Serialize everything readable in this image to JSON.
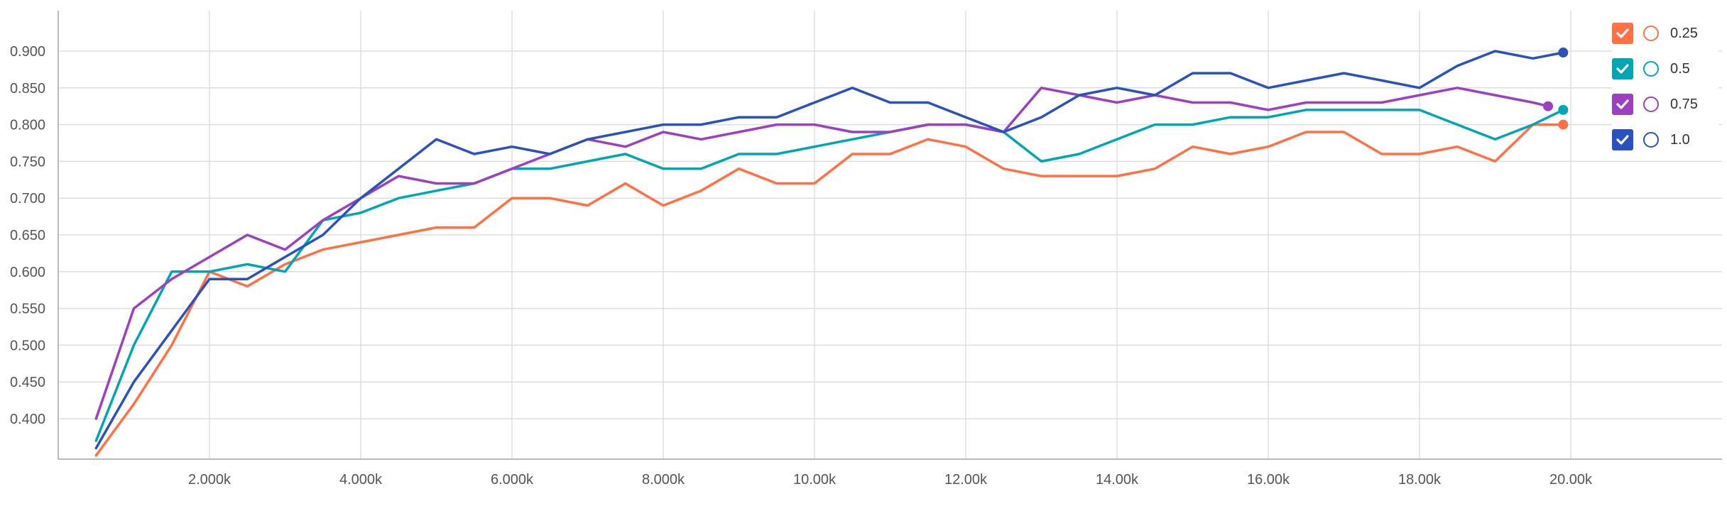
{
  "chart_data": {
    "type": "line",
    "xlim": [
      0,
      22
    ],
    "ylim": [
      0.345,
      0.955
    ],
    "x_ticks": [
      {
        "value": 2,
        "label": "2.000k"
      },
      {
        "value": 4,
        "label": "4.000k"
      },
      {
        "value": 6,
        "label": "6.000k"
      },
      {
        "value": 8,
        "label": "8.000k"
      },
      {
        "value": 10,
        "label": "10.00k"
      },
      {
        "value": 12,
        "label": "12.00k"
      },
      {
        "value": 14,
        "label": "14.00k"
      },
      {
        "value": 16,
        "label": "16.00k"
      },
      {
        "value": 18,
        "label": "18.00k"
      },
      {
        "value": 20,
        "label": "20.00k"
      }
    ],
    "y_ticks": [
      {
        "value": 0.4,
        "label": "0.400"
      },
      {
        "value": 0.45,
        "label": "0.450"
      },
      {
        "value": 0.5,
        "label": "0.500"
      },
      {
        "value": 0.55,
        "label": "0.550"
      },
      {
        "value": 0.6,
        "label": "0.600"
      },
      {
        "value": 0.65,
        "label": "0.650"
      },
      {
        "value": 0.7,
        "label": "0.700"
      },
      {
        "value": 0.75,
        "label": "0.750"
      },
      {
        "value": 0.8,
        "label": "0.800"
      },
      {
        "value": 0.85,
        "label": "0.850"
      },
      {
        "value": 0.9,
        "label": "0.900"
      }
    ],
    "grid": true,
    "legend_position": "top-right",
    "series": [
      {
        "name": "0.25",
        "color": "#ff7043",
        "x": [
          0.5,
          1.0,
          1.5,
          2.0,
          2.5,
          3.0,
          3.5,
          4.0,
          4.5,
          5.0,
          5.5,
          6.0,
          6.5,
          7.0,
          7.5,
          8.0,
          8.5,
          9.0,
          9.5,
          10.0,
          10.5,
          11.0,
          11.5,
          12.0,
          12.5,
          13.0,
          13.5,
          14.0,
          14.5,
          15.0,
          15.5,
          16.0,
          16.5,
          17.0,
          17.5,
          18.0,
          18.5,
          19.0,
          19.5,
          19.9
        ],
        "values": [
          0.35,
          0.42,
          0.5,
          0.6,
          0.58,
          0.61,
          0.63,
          0.64,
          0.65,
          0.66,
          0.66,
          0.7,
          0.7,
          0.69,
          0.72,
          0.69,
          0.71,
          0.74,
          0.72,
          0.72,
          0.76,
          0.76,
          0.78,
          0.77,
          0.74,
          0.73,
          0.73,
          0.73,
          0.74,
          0.77,
          0.76,
          0.77,
          0.79,
          0.79,
          0.76,
          0.76,
          0.77,
          0.75,
          0.8,
          0.8
        ]
      },
      {
        "name": "0.5",
        "color": "#00a6b4",
        "x": [
          0.5,
          1.0,
          1.5,
          2.0,
          2.5,
          3.0,
          3.5,
          4.0,
          4.5,
          5.0,
          5.5,
          6.0,
          6.5,
          7.0,
          7.5,
          8.0,
          8.5,
          9.0,
          9.5,
          10.0,
          10.5,
          11.0,
          11.5,
          12.0,
          12.5,
          13.0,
          13.5,
          14.0,
          14.5,
          15.0,
          15.5,
          16.0,
          16.5,
          17.0,
          17.5,
          18.0,
          18.5,
          19.0,
          19.5,
          19.9
        ],
        "values": [
          0.37,
          0.5,
          0.6,
          0.6,
          0.61,
          0.6,
          0.67,
          0.68,
          0.7,
          0.71,
          0.72,
          0.74,
          0.74,
          0.75,
          0.76,
          0.74,
          0.74,
          0.76,
          0.76,
          0.77,
          0.78,
          0.79,
          0.8,
          0.8,
          0.79,
          0.75,
          0.76,
          0.78,
          0.8,
          0.8,
          0.81,
          0.81,
          0.82,
          0.82,
          0.82,
          0.82,
          0.8,
          0.78,
          0.8,
          0.82
        ]
      },
      {
        "name": "0.75",
        "color": "#9c40c0",
        "x": [
          0.5,
          1.0,
          1.5,
          2.0,
          2.5,
          3.0,
          3.5,
          4.0,
          4.5,
          5.0,
          5.5,
          6.0,
          6.5,
          7.0,
          7.5,
          8.0,
          8.5,
          9.0,
          9.5,
          10.0,
          10.5,
          11.0,
          11.5,
          12.0,
          12.5,
          13.0,
          13.5,
          14.0,
          14.5,
          15.0,
          15.5,
          16.0,
          16.5,
          17.0,
          17.5,
          18.0,
          18.5,
          19.0,
          19.5,
          19.7
        ],
        "values": [
          0.4,
          0.55,
          0.59,
          0.62,
          0.65,
          0.63,
          0.67,
          0.7,
          0.73,
          0.72,
          0.72,
          0.74,
          0.76,
          0.78,
          0.77,
          0.79,
          0.78,
          0.79,
          0.8,
          0.8,
          0.79,
          0.79,
          0.8,
          0.8,
          0.79,
          0.85,
          0.84,
          0.83,
          0.84,
          0.83,
          0.83,
          0.82,
          0.83,
          0.83,
          0.83,
          0.84,
          0.85,
          0.84,
          0.83,
          0.825
        ]
      },
      {
        "name": "1.0",
        "color": "#2a52be",
        "x": [
          0.5,
          1.0,
          1.5,
          2.0,
          2.5,
          3.0,
          3.5,
          4.0,
          4.5,
          5.0,
          5.5,
          6.0,
          6.5,
          7.0,
          7.5,
          8.0,
          8.5,
          9.0,
          9.5,
          10.0,
          10.5,
          11.0,
          11.5,
          12.0,
          12.5,
          13.0,
          13.5,
          14.0,
          14.5,
          15.0,
          15.5,
          16.0,
          16.5,
          17.0,
          17.5,
          18.0,
          18.5,
          19.0,
          19.5,
          19.9
        ],
        "values": [
          0.36,
          0.45,
          0.52,
          0.59,
          0.59,
          0.62,
          0.65,
          0.7,
          0.74,
          0.78,
          0.76,
          0.77,
          0.76,
          0.78,
          0.79,
          0.8,
          0.8,
          0.81,
          0.81,
          0.83,
          0.85,
          0.83,
          0.83,
          0.81,
          0.79,
          0.81,
          0.84,
          0.85,
          0.84,
          0.87,
          0.87,
          0.85,
          0.86,
          0.87,
          0.86,
          0.85,
          0.88,
          0.9,
          0.89,
          0.898
        ]
      }
    ]
  }
}
